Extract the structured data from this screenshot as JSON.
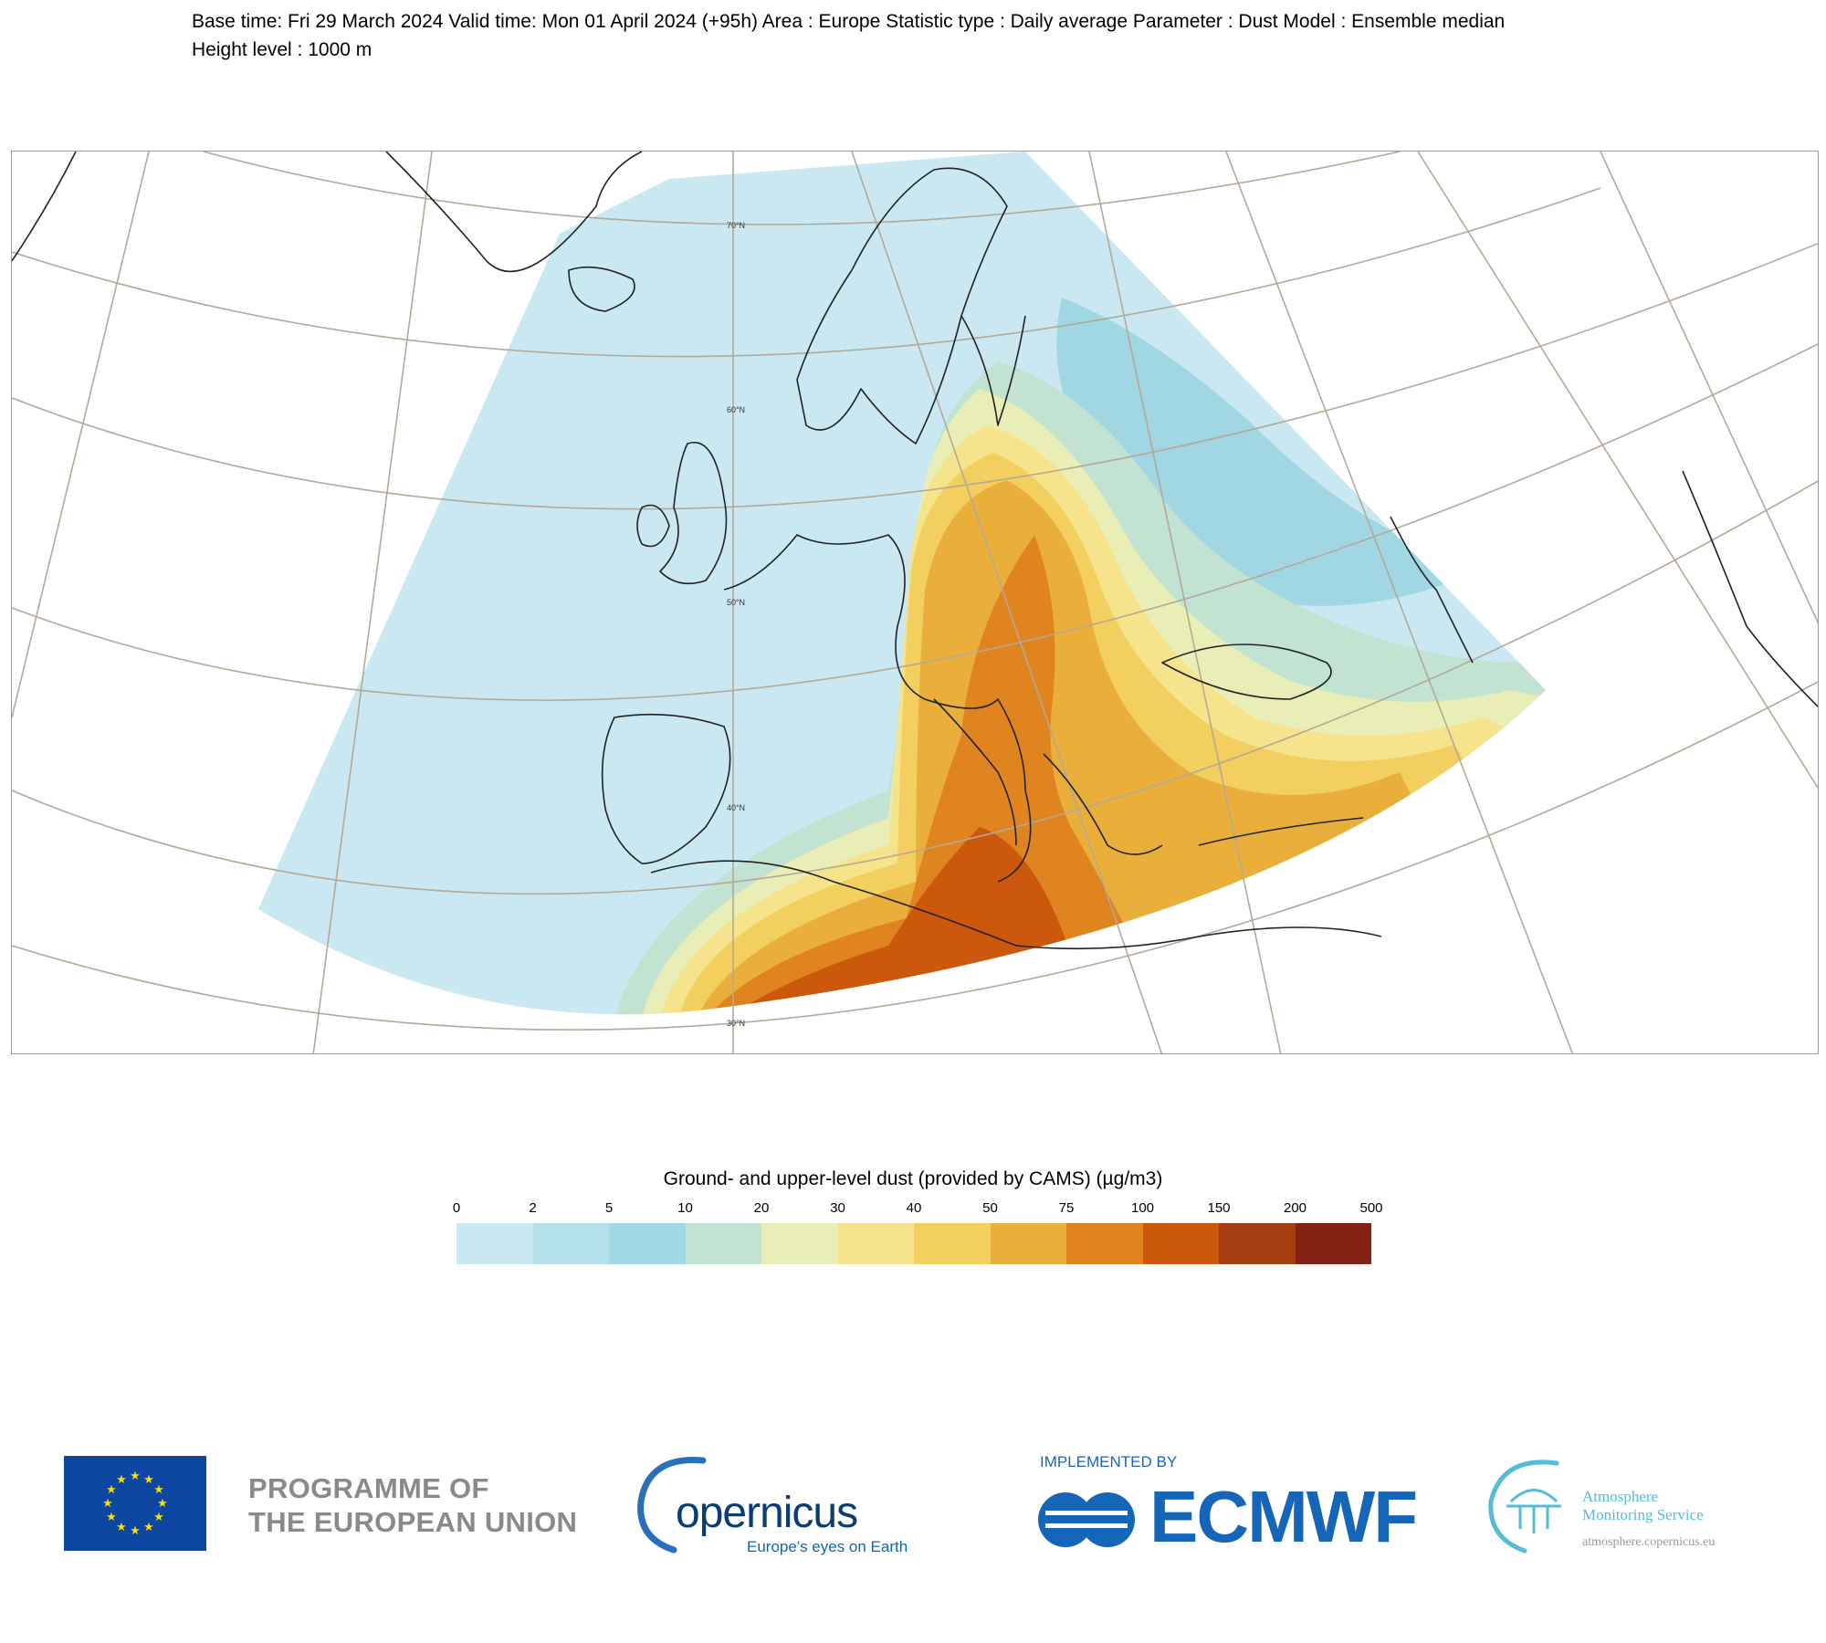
{
  "header": {
    "line1": "Base time: Fri 29 March 2024 Valid time: Mon 01 April 2024 (+95h) Area : Europe Statistic type : Daily average Parameter : Dust Model : Ensemble median",
    "line2": "Height level : 1000 m"
  },
  "map": {
    "latitude_labels": [
      "70°N",
      "60°N",
      "50°N",
      "40°N",
      "30°N"
    ],
    "land_color": "#ffffff",
    "ocean_color": "#ffffff",
    "graticule_color": "#b3a996",
    "coastline_color": "#222222",
    "border_color": "#555555"
  },
  "legend": {
    "title": "Ground- and upper-level dust (provided by CAMS) (µg/m3)",
    "ticks": [
      "0",
      "2",
      "5",
      "10",
      "20",
      "30",
      "40",
      "50",
      "75",
      "100",
      "150",
      "200",
      "500"
    ],
    "colors": [
      "#c9e8f2",
      "#b4e0ec",
      "#a1d6e3",
      "#c2e2d2",
      "#e9eeb6",
      "#f6e48d",
      "#f3cf5f",
      "#eaae3b",
      "#e0841f",
      "#cc580d",
      "#a73e11",
      "#832115"
    ]
  },
  "footer": {
    "eu_line1": "PROGRAMME OF",
    "eu_line2": "THE EUROPEAN UNION",
    "copernicus_word": "opernicus",
    "copernicus_tagline": "Europe's eyes on Earth",
    "ecmwf_implemented": "IMPLEMENTED BY",
    "ecmwf_word": "ECMWF",
    "ams_line1": "Atmosphere",
    "ams_line2": "Monitoring Service",
    "ams_url": "atmosphere.copernicus.eu"
  }
}
